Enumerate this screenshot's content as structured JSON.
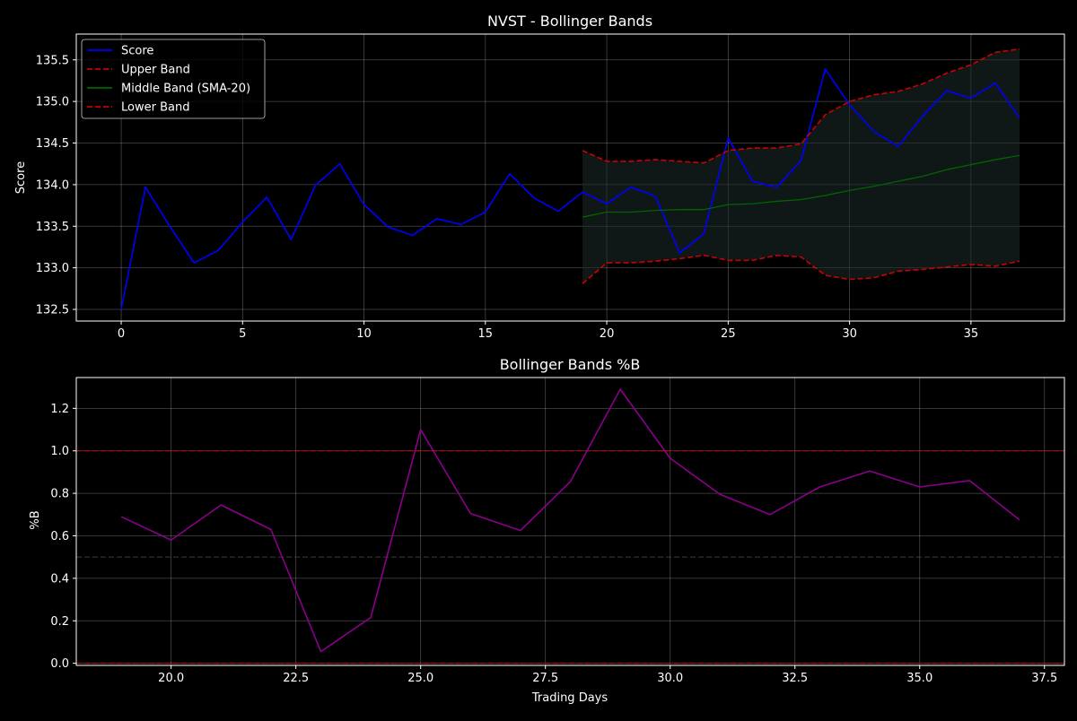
{
  "chart_data": [
    {
      "type": "line",
      "title": "NVST - Bollinger Bands",
      "xlabel": "",
      "ylabel": "Score",
      "xlim": [
        -1.85,
        38.85
      ],
      "ylim": [
        132.36,
        135.81
      ],
      "xticks": [
        0,
        5,
        10,
        15,
        20,
        25,
        30,
        35
      ],
      "xtick_labels": [
        "0",
        "5",
        "10",
        "15",
        "20",
        "25",
        "30",
        "35"
      ],
      "yticks": [
        132.5,
        133.0,
        133.5,
        134.0,
        134.5,
        135.0,
        135.5
      ],
      "ytick_labels": [
        "132.5",
        "133.0",
        "133.5",
        "134.0",
        "134.5",
        "135.0",
        "135.5"
      ],
      "grid": true,
      "legend_position": "top-left",
      "band_fill_color": "#1e2a2a",
      "series": [
        {
          "name": "Score",
          "color": "#0000ff",
          "style": "solid",
          "x": [
            0,
            1,
            2,
            3,
            4,
            5,
            6,
            7,
            8,
            9,
            10,
            11,
            12,
            13,
            14,
            15,
            16,
            17,
            18,
            19,
            20,
            21,
            22,
            23,
            24,
            25,
            26,
            27,
            28,
            29,
            30,
            31,
            32,
            33,
            34,
            35,
            36,
            37
          ],
          "values": [
            132.5,
            133.97,
            133.5,
            133.06,
            133.21,
            133.55,
            133.85,
            133.34,
            133.99,
            134.25,
            133.76,
            133.49,
            133.39,
            133.59,
            133.52,
            133.67,
            134.13,
            133.84,
            133.68,
            133.91,
            133.77,
            133.97,
            133.86,
            133.18,
            133.41,
            134.56,
            134.04,
            133.97,
            134.29,
            135.39,
            134.96,
            134.64,
            134.46,
            134.82,
            135.13,
            135.04,
            135.22,
            134.8
          ]
        },
        {
          "name": "Upper Band",
          "color": "#cc0000",
          "style": "dashed",
          "x": [
            19,
            20,
            21,
            22,
            23,
            24,
            25,
            26,
            27,
            28,
            29,
            30,
            31,
            32,
            33,
            34,
            35,
            36,
            37
          ],
          "values": [
            134.41,
            134.28,
            134.28,
            134.3,
            134.28,
            134.26,
            134.41,
            134.44,
            134.44,
            134.49,
            134.84,
            135.0,
            135.08,
            135.12,
            135.21,
            135.34,
            135.44,
            135.59,
            135.63
          ]
        },
        {
          "name": "Middle Band (SMA-20)",
          "color": "#006400",
          "style": "solid",
          "x": [
            19,
            20,
            21,
            22,
            23,
            24,
            25,
            26,
            27,
            28,
            29,
            30,
            31,
            32,
            33,
            34,
            35,
            36,
            37
          ],
          "values": [
            133.61,
            133.67,
            133.67,
            133.69,
            133.7,
            133.7,
            133.76,
            133.77,
            133.8,
            133.82,
            133.87,
            133.93,
            133.98,
            134.04,
            134.1,
            134.18,
            134.24,
            134.3,
            134.35
          ]
        },
        {
          "name": "Lower Band",
          "color": "#cc0000",
          "style": "dashed",
          "x": [
            19,
            20,
            21,
            22,
            23,
            24,
            25,
            26,
            27,
            28,
            29,
            30,
            31,
            32,
            33,
            34,
            35,
            36,
            37
          ],
          "values": [
            132.81,
            133.06,
            133.06,
            133.08,
            133.11,
            133.15,
            133.09,
            133.09,
            133.15,
            133.13,
            132.91,
            132.86,
            132.88,
            132.96,
            132.98,
            133.01,
            133.04,
            133.02,
            133.08
          ]
        }
      ]
    },
    {
      "type": "line",
      "title": "Bollinger Bands %B",
      "xlabel": "Trading Days",
      "ylabel": "%B",
      "xlim": [
        18.1,
        37.9
      ],
      "ylim": [
        -0.01,
        1.345
      ],
      "xticks": [
        20.0,
        22.5,
        25.0,
        27.5,
        30.0,
        32.5,
        35.0,
        37.5
      ],
      "xtick_labels": [
        "20.0",
        "22.5",
        "25.0",
        "27.5",
        "30.0",
        "32.5",
        "35.0",
        "37.5"
      ],
      "yticks": [
        0.0,
        0.2,
        0.4,
        0.6,
        0.8,
        1.0,
        1.2
      ],
      "ytick_labels": [
        "0.0",
        "0.2",
        "0.4",
        "0.6",
        "0.8",
        "1.0",
        "1.2"
      ],
      "grid": true,
      "reference_lines": [
        {
          "y": 1.0,
          "color": "#cc0000",
          "style": "dashed"
        },
        {
          "y": 0.5,
          "color": "#444444",
          "style": "dashed"
        },
        {
          "y": 0.0,
          "color": "#cc0000",
          "style": "dashed"
        }
      ],
      "series": [
        {
          "color": "#8b008b",
          "style": "solid",
          "x": [
            19,
            20,
            21,
            22,
            23,
            24,
            25,
            26,
            27,
            28,
            29,
            30,
            31,
            32,
            33,
            34,
            35,
            36,
            37
          ],
          "values": [
            0.69,
            0.58,
            0.745,
            0.63,
            0.055,
            0.215,
            1.1,
            0.705,
            0.625,
            0.855,
            1.29,
            0.965,
            0.795,
            0.7,
            0.83,
            0.905,
            0.83,
            0.86,
            0.675
          ]
        }
      ]
    }
  ]
}
